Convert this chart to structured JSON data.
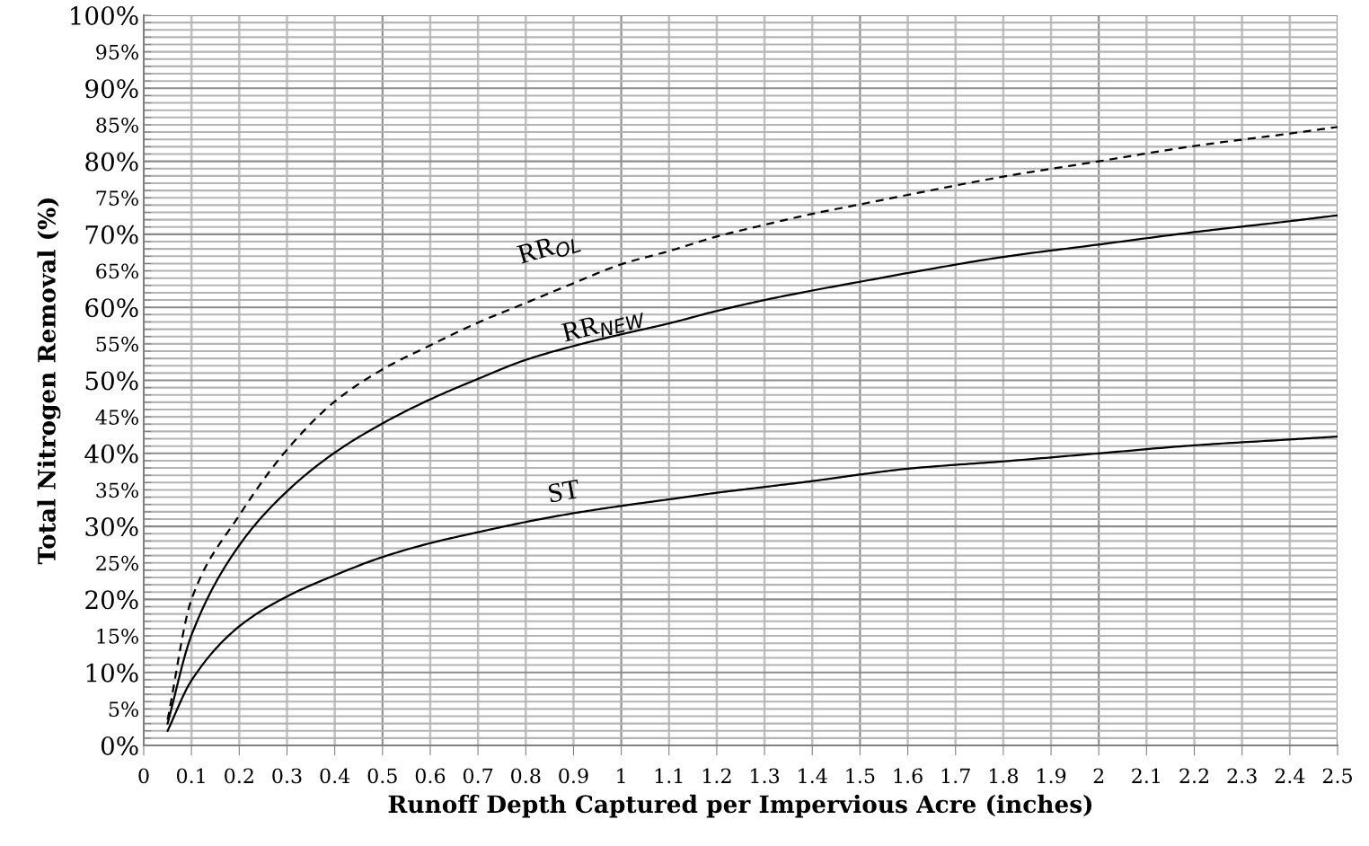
{
  "chart_data": {
    "type": "line",
    "xlabel": "Runoff Depth Captured per Impervious Acre (inches)",
    "ylabel": "Total Nitrogen Removal (%)",
    "xlim": [
      0,
      2.5
    ],
    "ylim": [
      0,
      100
    ],
    "xticks": [
      0,
      0.1,
      0.2,
      0.3,
      0.4,
      0.5,
      0.6,
      0.7,
      0.8,
      0.9,
      1,
      1.1,
      1.2,
      1.3,
      1.4,
      1.5,
      1.6,
      1.7,
      1.8,
      1.9,
      2,
      2.1,
      2.2,
      2.3,
      2.4,
      2.5
    ],
    "yticks": [
      {
        "value": 0,
        "label": "0%"
      },
      {
        "value": 1,
        "label": null
      },
      {
        "value": 2,
        "label": null
      },
      {
        "value": 3,
        "label": null
      },
      {
        "value": 4,
        "label": null
      },
      {
        "value": 5,
        "label": "5%"
      },
      {
        "value": 6,
        "label": null
      },
      {
        "value": 7,
        "label": null
      },
      {
        "value": 8,
        "label": null
      },
      {
        "value": 9,
        "label": null
      },
      {
        "value": 10,
        "label": "10%"
      },
      {
        "value": 11,
        "label": null
      },
      {
        "value": 12,
        "label": null
      },
      {
        "value": 13,
        "label": null
      },
      {
        "value": 14,
        "label": null
      },
      {
        "value": 15,
        "label": "15%"
      },
      {
        "value": 16,
        "label": null
      },
      {
        "value": 17,
        "label": null
      },
      {
        "value": 18,
        "label": null
      },
      {
        "value": 19,
        "label": null
      },
      {
        "value": 20,
        "label": "20%"
      },
      {
        "value": 21,
        "label": null
      },
      {
        "value": 22,
        "label": null
      },
      {
        "value": 23,
        "label": null
      },
      {
        "value": 24,
        "label": null
      },
      {
        "value": 25,
        "label": "25%"
      },
      {
        "value": 26,
        "label": null
      },
      {
        "value": 27,
        "label": null
      },
      {
        "value": 28,
        "label": null
      },
      {
        "value": 29,
        "label": null
      },
      {
        "value": 30,
        "label": "30%"
      },
      {
        "value": 31,
        "label": null
      },
      {
        "value": 32,
        "label": null
      },
      {
        "value": 33,
        "label": null
      },
      {
        "value": 34,
        "label": null
      },
      {
        "value": 35,
        "label": "35%"
      },
      {
        "value": 36,
        "label": null
      },
      {
        "value": 37,
        "label": null
      },
      {
        "value": 38,
        "label": null
      },
      {
        "value": 39,
        "label": null
      },
      {
        "value": 40,
        "label": "40%"
      },
      {
        "value": 41,
        "label": null
      },
      {
        "value": 42,
        "label": null
      },
      {
        "value": 43,
        "label": null
      },
      {
        "value": 44,
        "label": null
      },
      {
        "value": 45,
        "label": "45%"
      },
      {
        "value": 46,
        "label": null
      },
      {
        "value": 47,
        "label": null
      },
      {
        "value": 48,
        "label": null
      },
      {
        "value": 49,
        "label": null
      },
      {
        "value": 50,
        "label": "50%"
      },
      {
        "value": 51,
        "label": null
      },
      {
        "value": 52,
        "label": null
      },
      {
        "value": 53,
        "label": null
      },
      {
        "value": 54,
        "label": null
      },
      {
        "value": 55,
        "label": "55%"
      },
      {
        "value": 56,
        "label": null
      },
      {
        "value": 57,
        "label": null
      },
      {
        "value": 58,
        "label": null
      },
      {
        "value": 59,
        "label": null
      },
      {
        "value": 60,
        "label": "60%"
      },
      {
        "value": 61,
        "label": null
      },
      {
        "value": 62,
        "label": null
      },
      {
        "value": 63,
        "label": null
      },
      {
        "value": 64,
        "label": null
      },
      {
        "value": 65,
        "label": "65%"
      },
      {
        "value": 66,
        "label": null
      },
      {
        "value": 67,
        "label": null
      },
      {
        "value": 68,
        "label": null
      },
      {
        "value": 69,
        "label": null
      },
      {
        "value": 70,
        "label": "70%"
      },
      {
        "value": 71,
        "label": null
      },
      {
        "value": 72,
        "label": null
      },
      {
        "value": 73,
        "label": null
      },
      {
        "value": 74,
        "label": null
      },
      {
        "value": 75,
        "label": "75%"
      },
      {
        "value": 76,
        "label": null
      },
      {
        "value": 77,
        "label": null
      },
      {
        "value": 78,
        "label": null
      },
      {
        "value": 79,
        "label": null
      },
      {
        "value": 80,
        "label": "80%"
      },
      {
        "value": 81,
        "label": null
      },
      {
        "value": 82,
        "label": null
      },
      {
        "value": 83,
        "label": null
      },
      {
        "value": 84,
        "label": null
      },
      {
        "value": 85,
        "label": "85%"
      },
      {
        "value": 86,
        "label": null
      },
      {
        "value": 87,
        "label": null
      },
      {
        "value": 88,
        "label": null
      },
      {
        "value": 89,
        "label": null
      },
      {
        "value": 90,
        "label": "90%"
      },
      {
        "value": 91,
        "label": null
      },
      {
        "value": 92,
        "label": null
      },
      {
        "value": 93,
        "label": null
      },
      {
        "value": 94,
        "label": null
      },
      {
        "value": 95,
        "label": "95%"
      },
      {
        "value": 96,
        "label": null
      },
      {
        "value": 97,
        "label": null
      },
      {
        "value": 98,
        "label": null
      },
      {
        "value": 99,
        "label": null
      },
      {
        "value": 100,
        "label": "100%"
      }
    ],
    "x": [
      0.05,
      0.1,
      0.2,
      0.3,
      0.4,
      0.5,
      0.6,
      0.7,
      0.8,
      0.9,
      1,
      1.1,
      1.2,
      1.3,
      1.4,
      1.5,
      1.6,
      1.8,
      2,
      2.2,
      2.4,
      2.5
    ],
    "grid": true,
    "marker": "none",
    "series": [
      {
        "color": "#000000",
        "line_style": "dashed",
        "values": [
          3.5,
          20,
          31.5,
          40.5,
          47.1,
          51.5,
          54.8,
          57.9,
          60.6,
          63.3,
          65.9,
          67.7,
          69.7,
          71.3,
          72.8,
          74.1,
          75.4,
          77.9,
          80,
          82.1,
          83.8,
          84.7
        ]
      },
      {
        "color": "#000000",
        "line_style": "solid",
        "values": [
          3,
          15.1,
          27.4,
          34.8,
          40.1,
          44.1,
          47.4,
          50.2,
          52.8,
          54.7,
          56.3,
          57.8,
          59.5,
          61,
          62.3,
          63.5,
          64.7,
          66.9,
          68.6,
          70.3,
          71.8,
          72.6
        ]
      },
      {
        "color": "#000000",
        "line_style": "solid",
        "values": [
          2,
          8.9,
          16.3,
          20.4,
          23.3,
          25.8,
          27.7,
          29.2,
          30.6,
          31.8,
          32.8,
          33.7,
          34.6,
          35.4,
          36.2,
          37.1,
          37.9,
          38.9,
          40,
          41.1,
          41.9,
          42.3
        ]
      }
    ],
    "annotations": [
      "RR$_{OL}$",
      "RR$_{NEW}$",
      "ST"
    ]
  }
}
